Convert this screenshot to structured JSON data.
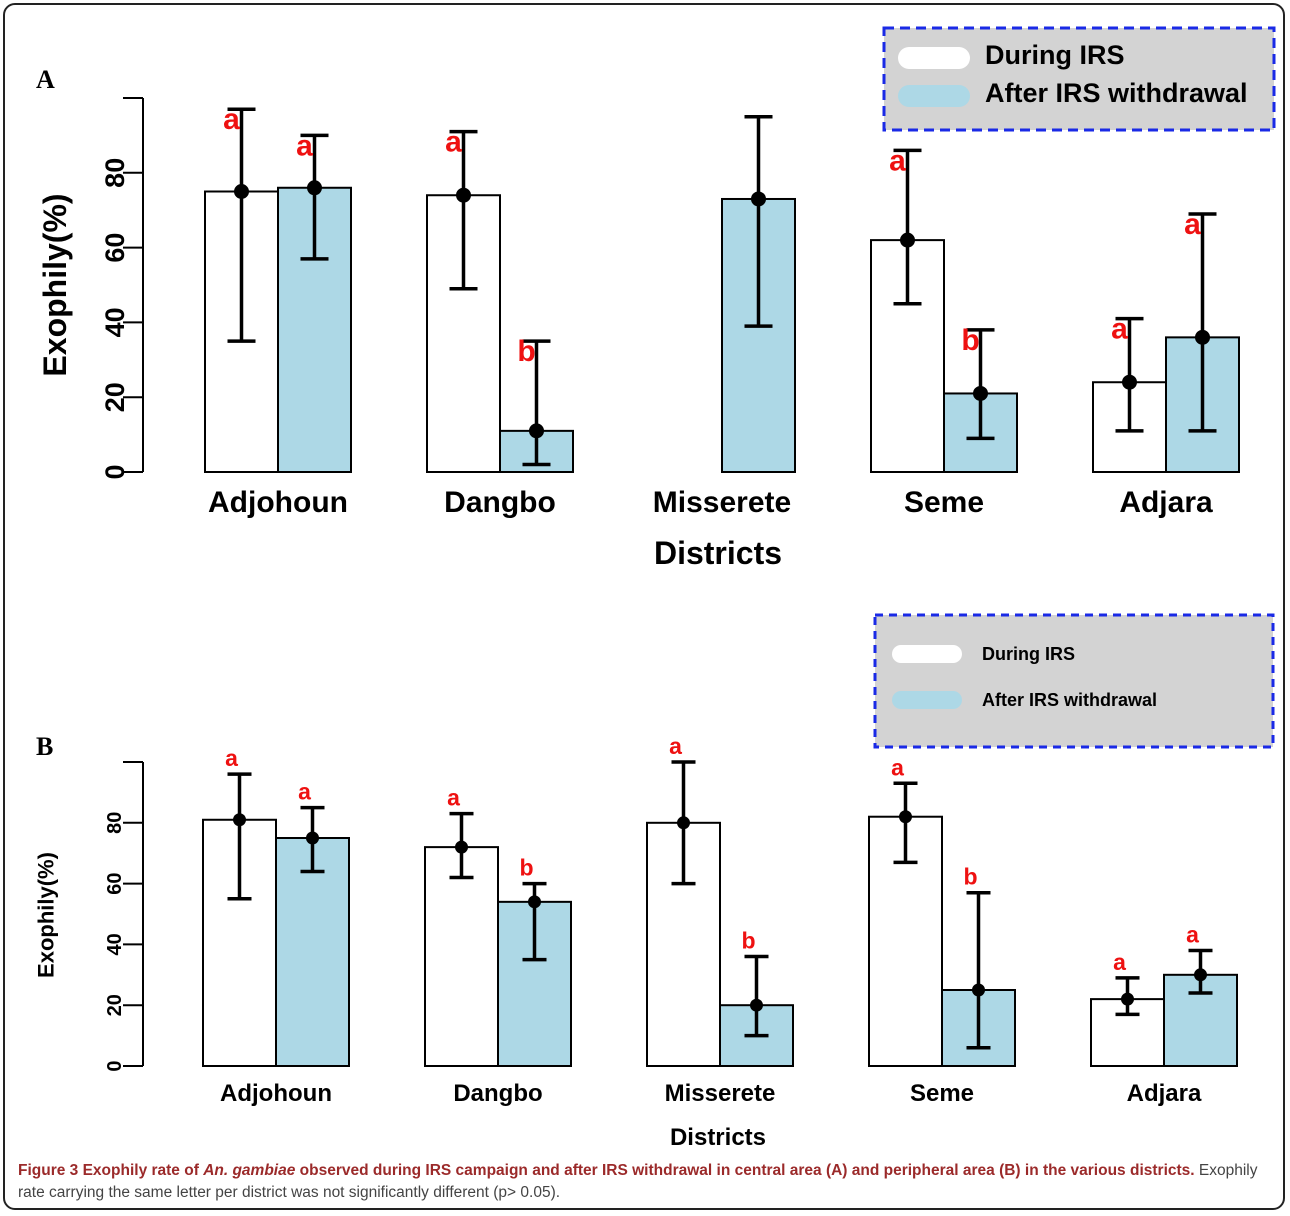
{
  "colors": {
    "during": "#ffffff",
    "after": "#add8e6",
    "letters": "#ee1111",
    "legend_bg": "#d3d3d3",
    "legend_border": "#1a2ae6",
    "caption_title": "#9b2a2a"
  },
  "caption": {
    "title_part1": "Figure 3 Exophily rate of ",
    "title_species": "An. gambiae",
    "title_part2": " observed during IRS campaign and after IRS withdrawal in central area (A) and peripheral area (B) in the various districts.",
    "body": " Exophily rate carrying the same letter per district was not significantly different (p> 0.05)."
  },
  "chart_data": [
    {
      "panel": "A",
      "type": "bar",
      "xlabel": "Districts",
      "ylabel": "Exophily(%)",
      "ylim": [
        0,
        100
      ],
      "yticks": [
        0,
        20,
        40,
        60,
        80
      ],
      "categories": [
        "Adjohoun",
        "Dangbo",
        "Misserete",
        "Seme",
        "Adjara"
      ],
      "legend": {
        "position": "top-right",
        "entries": [
          "During IRS",
          "After IRS withdrawal"
        ]
      },
      "series": [
        {
          "name": "During IRS",
          "values": [
            75,
            74,
            null,
            62,
            24
          ],
          "error_low": [
            35,
            49,
            null,
            45,
            11
          ],
          "error_high": [
            97,
            91,
            null,
            86,
            41
          ],
          "letters": [
            "a",
            "a",
            "",
            "a",
            "a"
          ]
        },
        {
          "name": "After IRS withdrawal",
          "values": [
            76,
            11,
            73,
            21,
            36
          ],
          "error_low": [
            57,
            2,
            39,
            9,
            11
          ],
          "error_high": [
            90,
            35,
            95,
            38,
            69
          ],
          "letters": [
            "a",
            "b",
            "",
            "b",
            "a"
          ]
        }
      ]
    },
    {
      "panel": "B",
      "type": "bar",
      "xlabel": "Districts",
      "ylabel": "Exophily(%)",
      "ylim": [
        0,
        100
      ],
      "yticks": [
        0,
        20,
        40,
        60,
        80
      ],
      "categories": [
        "Adjohoun",
        "Dangbo",
        "Misserete",
        "Seme",
        "Adjara"
      ],
      "legend": {
        "position": "top-right",
        "entries": [
          "During IRS",
          "After IRS withdrawal"
        ]
      },
      "series": [
        {
          "name": "During IRS",
          "values": [
            81,
            72,
            80,
            82,
            22
          ],
          "error_low": [
            55,
            62,
            60,
            67,
            17
          ],
          "error_high": [
            96,
            83,
            100,
            93,
            29
          ],
          "letters": [
            "a",
            "a",
            "a",
            "a",
            "a"
          ]
        },
        {
          "name": "After IRS withdrawal",
          "values": [
            75,
            54,
            20,
            25,
            30
          ],
          "error_low": [
            64,
            35,
            10,
            6,
            24
          ],
          "error_high": [
            85,
            60,
            36,
            57,
            38
          ],
          "letters": [
            "a",
            "b",
            "b",
            "b",
            "a"
          ]
        }
      ]
    }
  ]
}
